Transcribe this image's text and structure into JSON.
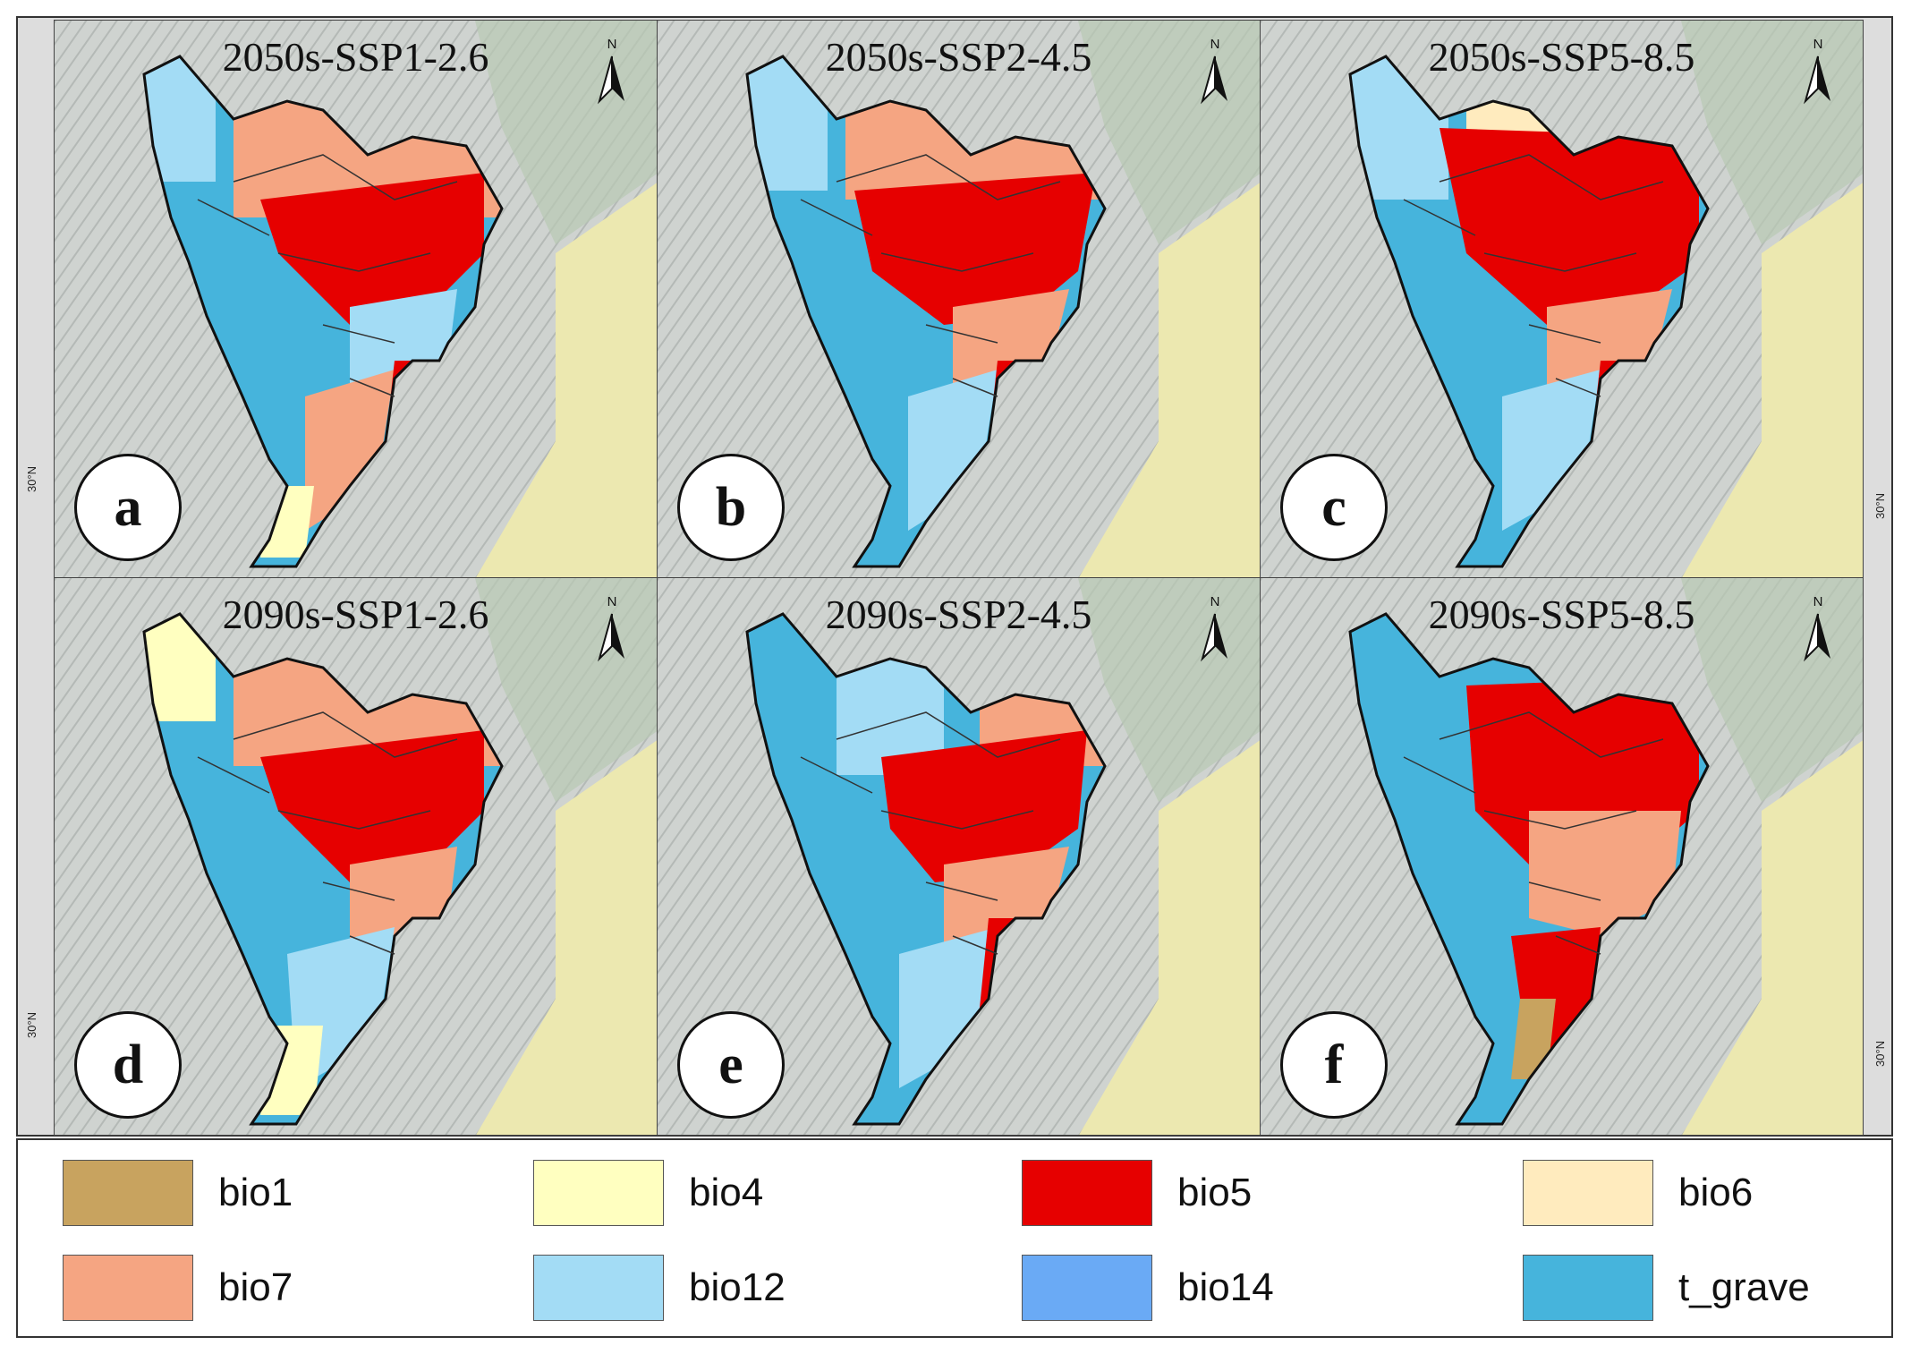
{
  "panels": [
    {
      "title": "2050s-SSP1-2.6",
      "letter": "a",
      "lat": "30°N"
    },
    {
      "title": "2050s-SSP2-4.5",
      "letter": "b",
      "lat": ""
    },
    {
      "title": "2050s-SSP5-8.5",
      "letter": "c",
      "lat": "30°N"
    },
    {
      "title": "2090s-SSP1-2.6",
      "letter": "d",
      "lat": "30°N"
    },
    {
      "title": "2090s-SSP2-4.5",
      "letter": "e",
      "lat": ""
    },
    {
      "title": "2090s-SSP5-8.5",
      "letter": "f",
      "lat": "30°N"
    }
  ],
  "north_label": "N",
  "legend": [
    {
      "label": "bio1",
      "color": "#c8a35f"
    },
    {
      "label": "bio4",
      "color": "#ffffc0"
    },
    {
      "label": "bio5",
      "color": "#e60000"
    },
    {
      "label": "bio6",
      "color": "#ffebbe"
    },
    {
      "label": "bio7",
      "color": "#f5a582"
    },
    {
      "label": "bio12",
      "color": "#a3dcf5"
    },
    {
      "label": "bio14",
      "color": "#6aaaf5"
    },
    {
      "label": "t_grave",
      "color": "#46b4dc"
    }
  ],
  "colors": {
    "terrain": "#cfd3d0",
    "lowland": "#ece8b0",
    "boundary": "#111111"
  }
}
